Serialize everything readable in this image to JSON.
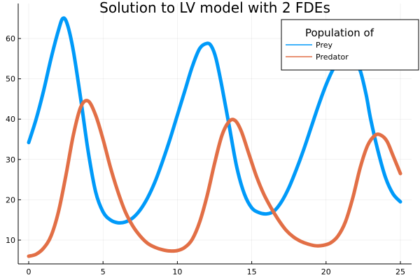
{
  "chart_data": {
    "type": "line",
    "title": "Solution to LV model with 2 FDEs",
    "xlabel": "",
    "ylabel": "",
    "xlim": [
      0,
      25
    ],
    "ylim": [
      5,
      66
    ],
    "x_ticks": [
      0,
      5,
      10,
      15,
      20,
      25
    ],
    "y_ticks": [
      10,
      20,
      30,
      40,
      50,
      60
    ],
    "grid": true,
    "legend": {
      "title": "Population of",
      "position": "top-right"
    },
    "series": [
      {
        "name": "Prey",
        "color": "#009af9",
        "x": [
          0,
          0.5,
          1,
          1.5,
          2,
          2.3,
          2.6,
          3,
          3.5,
          4,
          4.5,
          5,
          5.5,
          6,
          6.5,
          7,
          7.5,
          8,
          8.5,
          9,
          9.5,
          10,
          10.5,
          11,
          11.5,
          12,
          12.3,
          12.6,
          13,
          13.5,
          14,
          14.5,
          15,
          15.5,
          16,
          16.5,
          17,
          17.5,
          18,
          18.5,
          19,
          19.5,
          20,
          20.5,
          21,
          21.5,
          21.9,
          22.3,
          22.7,
          23,
          23.5,
          24,
          24.5,
          25
        ],
        "values": [
          34.2,
          40,
          47,
          55,
          62,
          65,
          63.5,
          57,
          45,
          32,
          22,
          17,
          15,
          14.3,
          14.5,
          15.5,
          17.5,
          20.5,
          24.5,
          29.5,
          35,
          41,
          47,
          53,
          57.5,
          58.8,
          58,
          55,
          48,
          38,
          28,
          21.5,
          18,
          16.8,
          16.5,
          17.2,
          19.5,
          23,
          27.5,
          32.5,
          38,
          43.5,
          48.5,
          52.5,
          54.5,
          55,
          54.5,
          52,
          46,
          40,
          32,
          25.5,
          21.5,
          19.5
        ]
      },
      {
        "name": "Predator",
        "color": "#e26f46",
        "x": [
          0,
          0.5,
          1,
          1.5,
          2,
          2.5,
          3,
          3.5,
          4,
          4.5,
          5,
          5.5,
          6,
          6.5,
          7,
          7.5,
          8,
          8.5,
          9,
          9.5,
          10,
          10.5,
          11,
          11.5,
          12,
          12.5,
          13,
          13.5,
          13.9,
          14.3,
          14.8,
          15.3,
          15.8,
          16.3,
          16.8,
          17.3,
          17.8,
          18.3,
          18.8,
          19.3,
          19.8,
          20.3,
          20.8,
          21.3,
          21.8,
          22.3,
          22.8,
          23.3,
          23.7,
          24.1,
          24.5,
          25
        ],
        "values": [
          6,
          6.5,
          8,
          11,
          17,
          26,
          36,
          43,
          44.5,
          41,
          35,
          28,
          22,
          17,
          13.5,
          11,
          9.2,
          8.2,
          7.6,
          7.3,
          7.4,
          8.2,
          10.2,
          14.5,
          21,
          29,
          36,
          39.5,
          39.6,
          37,
          31.5,
          26,
          21.5,
          18,
          15,
          12.5,
          10.8,
          9.7,
          9,
          8.6,
          8.7,
          9.3,
          11,
          14.5,
          20.5,
          28,
          33.5,
          36,
          36,
          34.5,
          31,
          26.5
        ]
      }
    ]
  }
}
